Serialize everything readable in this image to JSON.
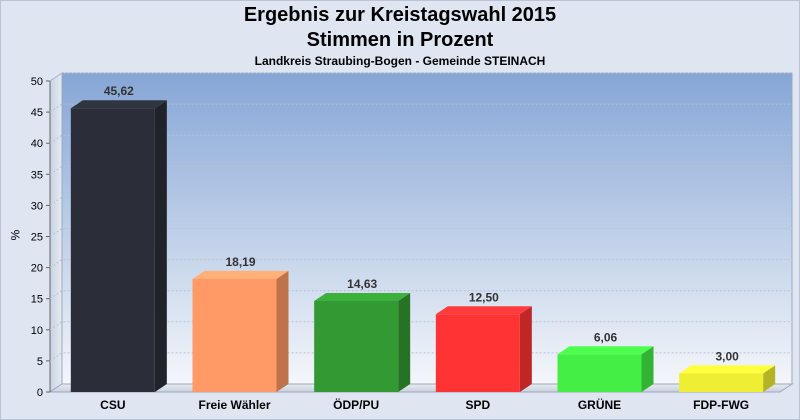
{
  "chart_data": {
    "type": "bar",
    "title": "Ergebnis zur Kreistagswahl 2015",
    "title_line2": "Stimmen in Prozent",
    "subtitle": "Landkreis Straubing-Bogen - Gemeinde STEINACH",
    "ylabel": "%",
    "xlabel": "",
    "ylim": [
      0,
      50
    ],
    "yticks": [
      0,
      5,
      10,
      15,
      20,
      25,
      30,
      35,
      40,
      45,
      50
    ],
    "grid": true,
    "categories": [
      "CSU",
      "Freie Wähler",
      "ÖDP/PU",
      "SPD",
      "GRÜNE",
      "FDP-FWG"
    ],
    "values": [
      45.62,
      18.19,
      14.63,
      12.5,
      6.06,
      3.0
    ],
    "value_labels": [
      "45,62",
      "18,19",
      "14,63",
      "12,50",
      "6,06",
      "3,00"
    ],
    "colors": [
      "#2b2e38",
      "#ff9966",
      "#339933",
      "#ff3333",
      "#44ee44",
      "#eeee33"
    ]
  }
}
